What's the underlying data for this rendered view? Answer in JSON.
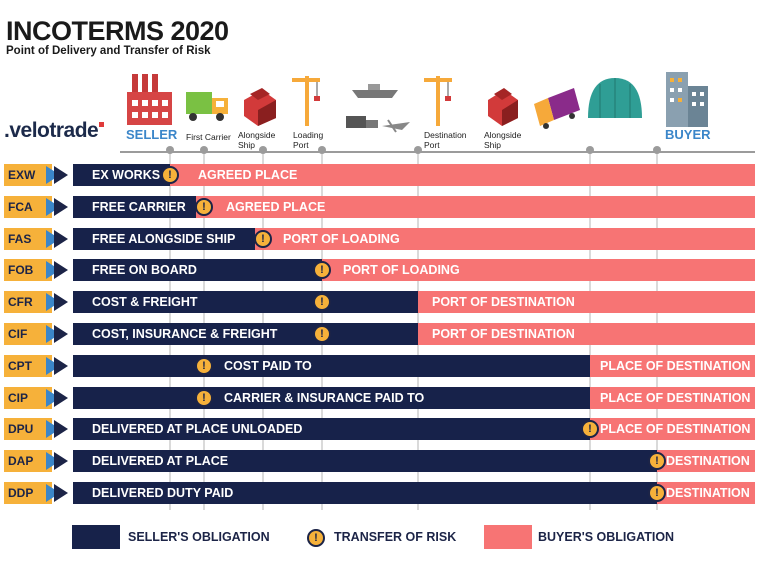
{
  "header": {
    "title": "INCOTERMS 2020",
    "subtitle": "Point of Delivery and Transfer of Risk",
    "logo_text": ".velotrade"
  },
  "stages": [
    {
      "id": "seller",
      "label": "SELLER",
      "icon": "factory-icon"
    },
    {
      "id": "first-carrier",
      "label": "First Carrier",
      "icon": "truck-icon"
    },
    {
      "id": "alongside-ship-origin",
      "label": "Alongside Ship",
      "icon": "containers-icon"
    },
    {
      "id": "loading-port",
      "label": "Loading Port",
      "icon": "crane-icon"
    },
    {
      "id": "transit",
      "label": "",
      "icon": "ship-and-plane-icon"
    },
    {
      "id": "destination-port",
      "label": "Destination Port",
      "icon": "crane-icon"
    },
    {
      "id": "alongside-ship-dest",
      "label": "Alongside Ship",
      "icon": "containers-icon"
    },
    {
      "id": "truck-dest",
      "label": "",
      "icon": "delivery-truck-icon"
    },
    {
      "id": "warehouse",
      "label": "",
      "icon": "warehouse-icon"
    },
    {
      "id": "buyer",
      "label": "BUYER",
      "icon": "buildings-icon"
    }
  ],
  "rules": [
    {
      "code": "EXW",
      "seller": "EX WORKS",
      "buyer": "AGREED PLACE",
      "risk_at": "seller"
    },
    {
      "code": "FCA",
      "seller": "FREE CARRIER",
      "buyer": "AGREED PLACE",
      "risk_at": "first-carrier"
    },
    {
      "code": "FAS",
      "seller": "FREE ALONGSIDE SHIP",
      "buyer": "PORT OF LOADING",
      "risk_at": "alongside-ship-origin"
    },
    {
      "code": "FOB",
      "seller": "FREE ON BOARD",
      "buyer": "PORT OF LOADING",
      "risk_at": "loading-port"
    },
    {
      "code": "CFR",
      "seller": "COST & FREIGHT",
      "buyer": "PORT OF DESTINATION",
      "risk_at": "loading-port"
    },
    {
      "code": "CIF",
      "seller": "COST, INSURANCE & FREIGHT",
      "buyer": "PORT OF DESTINATION",
      "risk_at": "loading-port"
    },
    {
      "code": "CPT",
      "seller": "COST PAID TO",
      "buyer": "PLACE OF DESTINATION",
      "risk_at": "first-carrier"
    },
    {
      "code": "CIP",
      "seller": "CARRIER & INSURANCE PAID TO",
      "buyer": "PLACE OF DESTINATION",
      "risk_at": "first-carrier"
    },
    {
      "code": "DPU",
      "seller": "DELIVERED AT PLACE UNLOADED",
      "buyer": "PLACE OF DESTINATION",
      "risk_at": "warehouse"
    },
    {
      "code": "DAP",
      "seller": "DELIVERED AT PLACE",
      "buyer": "DESTINATION",
      "risk_at": "buyer"
    },
    {
      "code": "DDP",
      "seller": "DELIVERED DUTY PAID",
      "buyer": "DESTINATION",
      "risk_at": "buyer"
    }
  ],
  "legend": {
    "seller": "SELLER'S OBLIGATION",
    "risk": "TRANSFER OF RISK",
    "buyer": "BUYER'S OBLIGATION"
  },
  "colors": {
    "seller": "#17224a",
    "buyer": "#f77474",
    "risk": "#f6b13a",
    "code": "#f6b13a",
    "party_label": "#3b86c9"
  }
}
